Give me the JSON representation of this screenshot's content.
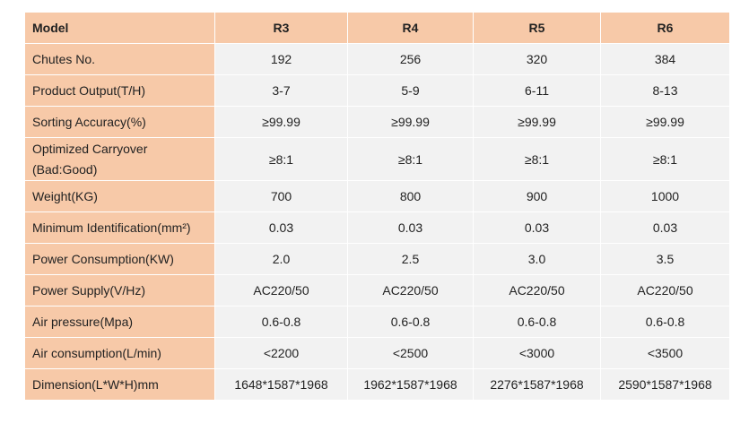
{
  "table": {
    "header": {
      "label": "Model",
      "models": [
        "R3",
        "R4",
        "R5",
        "R6"
      ]
    },
    "rows": [
      {
        "label": "Chutes No.",
        "values": [
          "192",
          "256",
          "320",
          "384"
        ]
      },
      {
        "label": "Product Output(T/H)",
        "values": [
          "3-7",
          "5-9",
          "6-11",
          "8-13"
        ]
      },
      {
        "label": "Sorting Accuracy(%)",
        "values": [
          "≥99.99",
          "≥99.99",
          "≥99.99",
          "≥99.99"
        ]
      },
      {
        "label": "Optimized Carryover",
        "label2": "(Bad:Good)",
        "values": [
          "≥8:1",
          "≥8:1",
          "≥8:1",
          "≥8:1"
        ]
      },
      {
        "label": "Weight(KG)",
        "values": [
          "700",
          "800",
          "900",
          "1000"
        ]
      },
      {
        "label": "Minimum Identification(mm²)",
        "values": [
          "0.03",
          "0.03",
          "0.03",
          "0.03"
        ]
      },
      {
        "label": "Power Consumption(KW)",
        "values": [
          "2.0",
          "2.5",
          "3.0",
          "3.5"
        ]
      },
      {
        "label": "Power Supply(V/Hz)",
        "values": [
          "AC220/50",
          "AC220/50",
          "AC220/50",
          "AC220/50"
        ]
      },
      {
        "label": "Air pressure(Mpa)",
        "values": [
          "0.6-0.8",
          "0.6-0.8",
          "0.6-0.8",
          "0.6-0.8"
        ]
      },
      {
        "label": "Air consumption(L/min)",
        "values": [
          "<2200",
          "<2500",
          "<3000",
          "<3500"
        ]
      },
      {
        "label": "Dimension(L*W*H)mm",
        "values": [
          "1648*1587*1968",
          "1962*1587*1968",
          "2276*1587*1968",
          "2590*1587*1968"
        ]
      }
    ]
  },
  "colors": {
    "label_background": "#f7c9a8",
    "value_background": "#f2f2f2",
    "text": "#222222"
  }
}
